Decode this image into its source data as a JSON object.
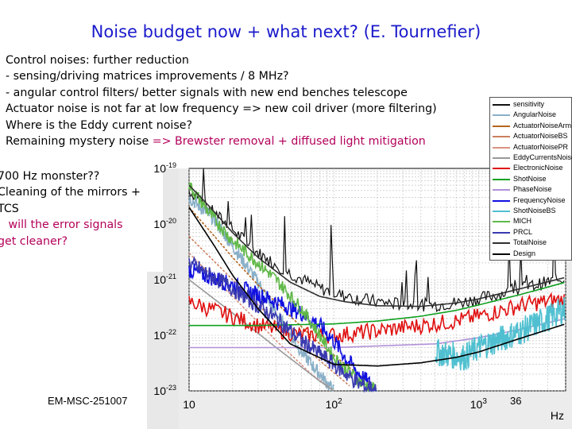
{
  "slide": {
    "title": "Noise budget now + what next? (E. Tournefier)",
    "bullets": [
      {
        "text": "Control noises: further reduction",
        "highlight": false
      },
      {
        "text": "- sensing/driving matrices improvements  / 8 MHz?",
        "highlight": false
      },
      {
        "text": "- angular control filters/ better signals with new end benches telescope",
        "highlight": false
      },
      {
        "text": "Actuator noise is not far at low frequency => new coil driver (more filtering)",
        "highlight": false
      },
      {
        "text": "Where is the Eddy current noise?",
        "highlight": false
      },
      {
        "text_pre": "Remaining mystery noise ",
        "text_hl": "=>  Brewster removal + diffused light mitigation",
        "highlight": true
      }
    ],
    "side_note": {
      "line1": "700 Hz monster??",
      "line2": "Cleaning of the mirrors +",
      "line3": "TCS",
      "line4": "   will the error signals",
      "line5": "get cleaner?"
    },
    "footer_left": "EM-MSC-251007",
    "page_number": "36"
  },
  "colors": {
    "title": "#1a1acc",
    "highlight": "#b3005a"
  },
  "chart_data": {
    "type": "line",
    "title": "",
    "xlabel": "Hz",
    "ylabel": "",
    "x_scale": "log",
    "y_scale": "log",
    "xlim": [
      10,
      4000
    ],
    "ylim": [
      1e-23,
      1e-19
    ],
    "x_tick_labels": [
      "10",
      "10^2",
      "10^3"
    ],
    "y_tick_labels": [
      "10^-19",
      "10^-20",
      "10^-21",
      "10^-22",
      "10^-23"
    ],
    "grid": true,
    "legend_position": "top-right",
    "series": [
      {
        "name": "sensitivity",
        "color": "#111111",
        "points": [
          [
            10,
            4e-20
          ],
          [
            14,
            1.8e-20
          ],
          [
            20,
            8e-21
          ],
          [
            30,
            3e-21
          ],
          [
            50,
            1.3e-21
          ],
          [
            80,
            7e-22
          ],
          [
            120,
            5e-22
          ],
          [
            200,
            4e-22
          ],
          [
            300,
            3.6e-22
          ],
          [
            500,
            3.5e-22
          ],
          [
            800,
            4e-22
          ],
          [
            1200,
            5e-22
          ],
          [
            2000,
            7e-22
          ],
          [
            3000,
            9e-22
          ],
          [
            4000,
            1.1e-21
          ]
        ]
      },
      {
        "name": "AngularNoise",
        "color": "#8ab0c8",
        "points": [
          [
            10,
            3e-20
          ],
          [
            15,
            1.2e-20
          ],
          [
            20,
            4e-21
          ],
          [
            30,
            9e-22
          ],
          [
            40,
            2.5e-22
          ],
          [
            60,
            5e-23
          ],
          [
            80,
            2e-23
          ],
          [
            100,
            1e-23
          ]
        ]
      },
      {
        "name": "ActuatorNoiseArm",
        "color": "#b5651d",
        "points": [
          [
            10,
            2e-20
          ],
          [
            15,
            6e-21
          ],
          [
            20,
            2.5e-21
          ],
          [
            30,
            8e-22
          ],
          [
            50,
            2.2e-22
          ],
          [
            80,
            7e-23
          ],
          [
            120,
            3e-23
          ],
          [
            200,
            1.1e-23
          ]
        ]
      },
      {
        "name": "ActuatorNoiseBS",
        "color": "#cc8060",
        "points": [
          [
            10,
            6e-21
          ],
          [
            20,
            1e-21
          ],
          [
            30,
            3.5e-22
          ],
          [
            50,
            1e-22
          ],
          [
            80,
            3.5e-23
          ],
          [
            130,
            1.2e-23
          ]
        ]
      },
      {
        "name": "ActuatorNoisePR",
        "color": "#d99080",
        "points": [
          [
            10,
            3e-21
          ],
          [
            20,
            5e-22
          ],
          [
            40,
            8e-23
          ],
          [
            70,
            2e-23
          ],
          [
            100,
            1e-23
          ]
        ]
      },
      {
        "name": "EddyCurrentsNoise",
        "color": "#999999",
        "points": [
          [
            10,
            1e-21
          ],
          [
            20,
            2.5e-22
          ],
          [
            40,
            6e-23
          ],
          [
            80,
            1.5e-23
          ],
          [
            100,
            1e-23
          ]
        ]
      },
      {
        "name": "ElectronicNoise",
        "color": "#e01010",
        "points": [
          [
            10,
            4e-22
          ],
          [
            30,
            1.5e-22
          ],
          [
            60,
            1e-22
          ],
          [
            100,
            1e-22
          ],
          [
            200,
            1.2e-22
          ],
          [
            400,
            1.5e-22
          ],
          [
            700,
            1.8e-22
          ],
          [
            1000,
            2.2e-22
          ],
          [
            2000,
            3.5e-22
          ],
          [
            4000,
            4.5e-22
          ]
        ]
      },
      {
        "name": "ShotNoise",
        "color": "#10a020",
        "points": [
          [
            10,
            1.5e-22
          ],
          [
            30,
            1.5e-22
          ],
          [
            100,
            1.6e-22
          ],
          [
            200,
            1.8e-22
          ],
          [
            400,
            2.2e-22
          ],
          [
            700,
            2.8e-22
          ],
          [
            1000,
            3.5e-22
          ],
          [
            2000,
            5.5e-22
          ],
          [
            4000,
            9e-22
          ]
        ]
      },
      {
        "name": "PhaseNoise",
        "color": "#b090d8",
        "points": [
          [
            10,
            6e-23
          ],
          [
            100,
            6e-23
          ],
          [
            500,
            7e-23
          ],
          [
            1000,
            9e-23
          ],
          [
            2000,
            1.3e-22
          ],
          [
            4000,
            2e-22
          ]
        ]
      },
      {
        "name": "FrequencyNoise",
        "color": "#1010e0",
        "points": [
          [
            10,
            1.5e-21
          ],
          [
            20,
            8e-22
          ],
          [
            40,
            4e-22
          ],
          [
            60,
            2.5e-22
          ],
          [
            80,
            1.5e-22
          ],
          [
            100,
            8e-23
          ],
          [
            120,
            4e-23
          ],
          [
            150,
            2e-23
          ],
          [
            200,
            1e-23
          ]
        ]
      },
      {
        "name": "ShotNoiseBS",
        "color": "#50c0d0",
        "points": [
          [
            500,
            5e-23
          ],
          [
            800,
            4e-23
          ],
          [
            1000,
            6e-23
          ],
          [
            2000,
            1.2e-22
          ],
          [
            3000,
            2e-22
          ],
          [
            4000,
            3e-22
          ]
        ]
      },
      {
        "name": "MICH",
        "color": "#60b848",
        "points": [
          [
            10,
            5e-20
          ],
          [
            14,
            1.5e-20
          ],
          [
            20,
            5e-21
          ],
          [
            30,
            2e-21
          ],
          [
            40,
            1e-21
          ],
          [
            60,
            3e-22
          ],
          [
            80,
            1e-22
          ],
          [
            100,
            4e-23
          ],
          [
            150,
            1.5e-23
          ],
          [
            200,
            1e-23
          ]
        ]
      },
      {
        "name": "PRCL",
        "color": "#3a3ab0",
        "points": [
          [
            10,
            2e-21
          ],
          [
            20,
            7e-22
          ],
          [
            40,
            2e-22
          ],
          [
            60,
            8e-23
          ],
          [
            100,
            3e-23
          ],
          [
            150,
            1.3e-23
          ],
          [
            200,
            1e-23
          ]
        ]
      },
      {
        "name": "TotalNoise",
        "color": "#303030",
        "points": [
          [
            10,
            5e-20
          ],
          [
            14,
            2e-20
          ],
          [
            20,
            7e-21
          ],
          [
            30,
            2.5e-21
          ],
          [
            50,
            9e-22
          ],
          [
            80,
            5e-22
          ],
          [
            120,
            4e-22
          ],
          [
            200,
            3.4e-22
          ],
          [
            400,
            3.3e-22
          ],
          [
            700,
            3.8e-22
          ],
          [
            1000,
            4.5e-22
          ],
          [
            2000,
            7e-22
          ],
          [
            4000,
            1.1e-21
          ]
        ]
      },
      {
        "name": "Design",
        "color": "#000000",
        "points": [
          [
            10,
            2e-20
          ],
          [
            15,
            4e-21
          ],
          [
            20,
            1.2e-21
          ],
          [
            30,
            3e-22
          ],
          [
            50,
            7e-23
          ],
          [
            100,
            3e-23
          ],
          [
            200,
            2.8e-23
          ],
          [
            400,
            3.2e-23
          ],
          [
            700,
            4e-23
          ],
          [
            1000,
            5e-23
          ],
          [
            2000,
            9e-23
          ],
          [
            4000,
            1.6e-22
          ]
        ]
      }
    ],
    "annotations": [
      {
        "text": "700 Hz monster??",
        "x": 700
      }
    ]
  }
}
